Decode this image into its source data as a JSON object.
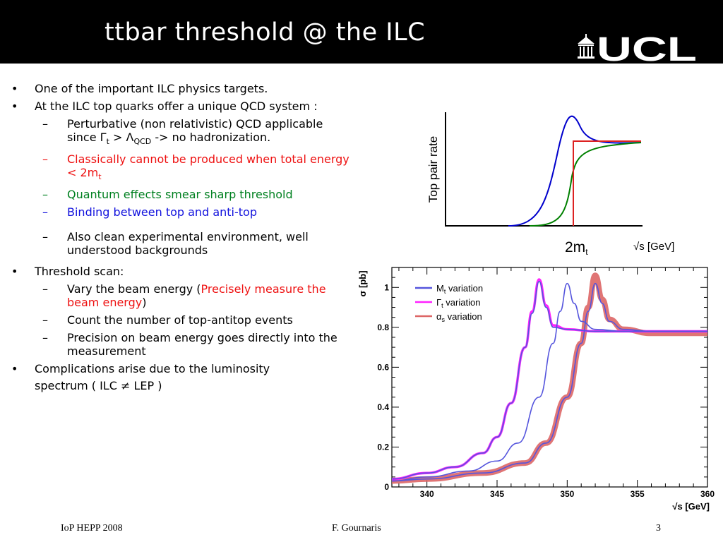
{
  "slide": {
    "title": "ttbar threshold @ the ILC",
    "logo_text": "UCL"
  },
  "bullets": {
    "b1": "One of the important ILC physics targets.",
    "b2": "At the ILC top quarks offer a unique QCD system :",
    "b2a_pre": "Perturbative (non relativistic) QCD applicable since ",
    "b2a_gamma": "Γ",
    "b2a_gamma_sub": "t",
    "b2a_gt": " > ",
    "b2a_lambda": "Λ",
    "b2a_lambda_sub": "QCD",
    "b2a_post": " -> no hadronization.",
    "b2b_pre": "Classically cannot be produced when total energy < 2m",
    "b2b_sub": "t",
    "b2c": "Quantum effects smear sharp threshold",
    "b2d": "Binding between top and anti-top",
    "b2e": "Also clean experimental environment, well understood backgrounds",
    "b3": "Threshold scan:",
    "b3a_pre": "Vary the beam energy (",
    "b3a_red": "Precisely measure the beam energy",
    "b3a_post": ")",
    "b3b": "Count the number of top-antitop events",
    "b3c": "Precision on beam energy goes directly into the measurement",
    "b4_line1": "Complications arise due to the luminosity",
    "b4_line2": "spectrum ( ILC ≠ LEP )"
  },
  "footer": {
    "left": "IoP HEPP 2008",
    "center": "F. Gournaris",
    "right": "3"
  },
  "chart_data": [
    {
      "type": "line",
      "ylabel": "Top pair rate",
      "x_marker": "2m",
      "x_marker_sub": "t",
      "xlabel_root": "√",
      "xlabel": "s [GeV]",
      "series": [
        {
          "color": "#0000cc",
          "shape": "resonance peak below 2mt"
        },
        {
          "color": "#008000",
          "shape": "smooth threshold rise"
        },
        {
          "color": "#dd2222",
          "shape": "sharp step at 2mt"
        }
      ]
    },
    {
      "type": "line",
      "ylabel": "σ [pb]",
      "xlabel": "√s [GeV]",
      "xlim": [
        337.5,
        360
      ],
      "ylim": [
        0,
        1.1
      ],
      "x_ticks": [
        "340",
        "345",
        "350",
        "355",
        "360"
      ],
      "y_ticks": [
        "0",
        "0.2",
        "0.4",
        "0.6",
        "0.8",
        "1"
      ],
      "legend": [
        {
          "name": "M",
          "sub": "t",
          "suffix": " variation",
          "color": "#5555dd"
        },
        {
          "name": "Γ",
          "sub": "t",
          "suffix": " variation",
          "color": "#ff22ff"
        },
        {
          "name": "α",
          "sub": "s",
          "suffix": " variation",
          "color": "#dd6666"
        }
      ],
      "series": [
        {
          "name": "Mt variation (peak 348)",
          "color": "#5555dd",
          "x": [
            337.5,
            340,
            342,
            344,
            345,
            346,
            347,
            347.5,
            348,
            348.5,
            349,
            350,
            352,
            356,
            360
          ],
          "y": [
            0.04,
            0.07,
            0.1,
            0.17,
            0.25,
            0.42,
            0.7,
            0.87,
            1.03,
            0.9,
            0.8,
            0.79,
            0.78,
            0.78,
            0.78
          ]
        },
        {
          "name": "Mt variation (peak 350)",
          "color": "#5555dd",
          "x": [
            337.5,
            340,
            343,
            345,
            346.5,
            348,
            349,
            349.5,
            350,
            350.5,
            351,
            352,
            354,
            360
          ],
          "y": [
            0.03,
            0.05,
            0.08,
            0.13,
            0.22,
            0.45,
            0.72,
            0.88,
            1.02,
            0.92,
            0.83,
            0.79,
            0.78,
            0.78
          ]
        },
        {
          "name": "Mt variation (peak 352)",
          "color": "#5555dd",
          "x": [
            337.5,
            340,
            344,
            347,
            348.5,
            350,
            351,
            351.5,
            352,
            352.5,
            353,
            354,
            356,
            360
          ],
          "y": [
            0.03,
            0.04,
            0.07,
            0.12,
            0.22,
            0.45,
            0.72,
            0.88,
            1.02,
            0.92,
            0.83,
            0.79,
            0.78,
            0.78
          ]
        },
        {
          "name": "Gamma_t variation",
          "color": "#ff22ff",
          "x": [
            337.5,
            340,
            342,
            344,
            345,
            346,
            347,
            347.5,
            348,
            348.5,
            349,
            350,
            352,
            356,
            360
          ],
          "y": [
            0.04,
            0.07,
            0.1,
            0.17,
            0.25,
            0.42,
            0.7,
            0.88,
            1.04,
            0.91,
            0.81,
            0.79,
            0.78,
            0.78,
            0.78
          ]
        },
        {
          "name": "alpha_s variation",
          "color": "#dd6666",
          "x": [
            337.5,
            340,
            344,
            347,
            348.5,
            350,
            351,
            351.5,
            352,
            352.5,
            353,
            354,
            356,
            360
          ],
          "y": [
            0.03,
            0.04,
            0.07,
            0.12,
            0.22,
            0.45,
            0.72,
            0.9,
            1.06,
            0.94,
            0.84,
            0.79,
            0.77,
            0.77
          ]
        }
      ]
    }
  ]
}
